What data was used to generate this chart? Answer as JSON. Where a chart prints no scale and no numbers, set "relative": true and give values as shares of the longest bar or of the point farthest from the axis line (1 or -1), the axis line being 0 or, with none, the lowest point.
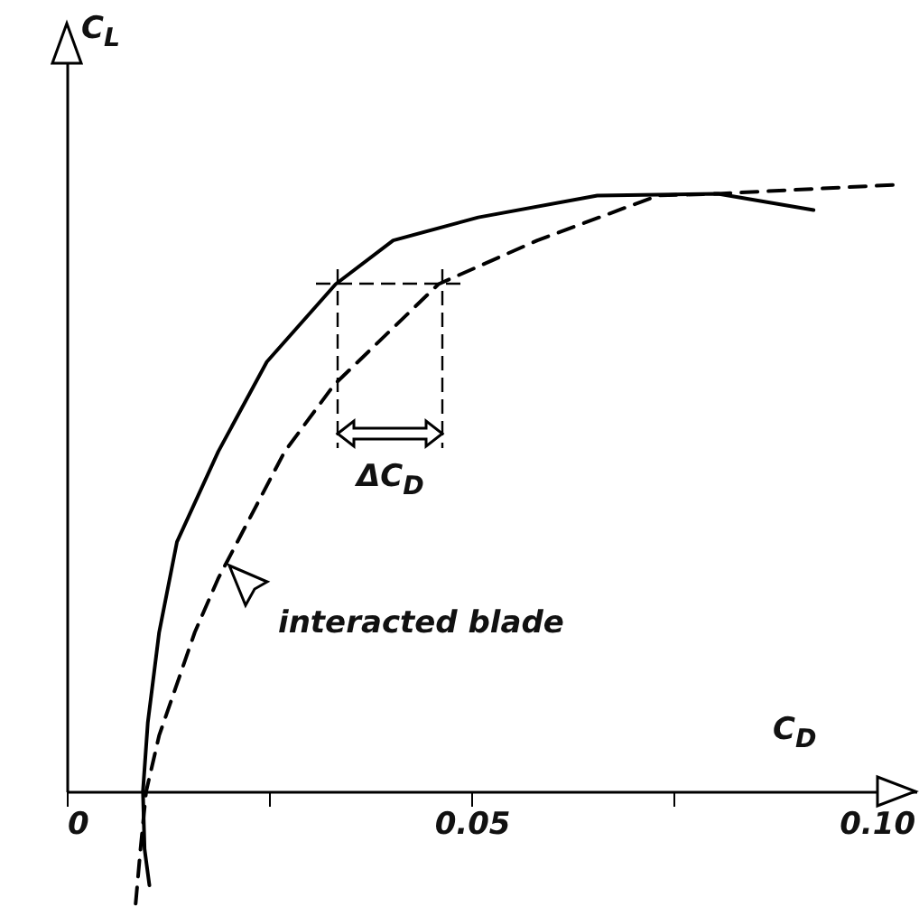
{
  "chart_data": {
    "type": "line",
    "relative": true,
    "xlabel": "C$_{D}$",
    "ylabel": "C$_{L}$",
    "xlim": [
      0,
      0.105
    ],
    "xticks": [
      {
        "value": 0,
        "label": "0"
      },
      {
        "value": 0.025,
        "label": null
      },
      0.05,
      {
        "value": 0.075,
        "label": null
      },
      {
        "value": 0.1,
        "label": "0.10"
      }
    ],
    "grid": false,
    "series": [
      {
        "color": "#000000",
        "line_style": "solid",
        "x": [
          0.0102,
          0.0096,
          0.0094,
          0.01,
          0.0114,
          0.0136,
          0.0187,
          0.0247,
          0.0332,
          0.0403,
          0.0508,
          0.0655,
          0.0804,
          0.0922
        ],
        "values": [
          -0.155,
          -0.095,
          0,
          0.113,
          0.262,
          0.411,
          0.56,
          0.708,
          0.836,
          0.908,
          0.946,
          0.982,
          0.985,
          0.958
        ]
      },
      {
        "color": "#000000",
        "line_style": "dashed",
        "x": [
          0.0085,
          0.0091,
          0.0098,
          0.0114,
          0.0158,
          0.0187,
          0.0269,
          0.033,
          0.0459,
          0.0581,
          0.073,
          0.0804,
          0.1027
        ],
        "values": [
          -0.185,
          -0.095,
          0,
          0.092,
          0.262,
          0.351,
          0.56,
          0.67,
          0.836,
          0.908,
          0.982,
          0.985,
          1.0
        ]
      }
    ],
    "annotations": [
      "ΔC$_{D}$",
      "interacted blade"
    ]
  }
}
